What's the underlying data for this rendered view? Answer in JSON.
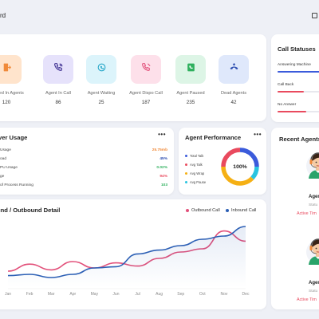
{
  "header": {
    "title": "rd"
  },
  "stats": [
    {
      "label": "Logged In Agents",
      "value": "120",
      "icon": "door-exit-icon",
      "bg": "#ffe4cc",
      "fg": "#f08a3a"
    },
    {
      "label": "Agent In Call",
      "value": "86",
      "icon": "phone-call-icon",
      "bg": "#e6e2fb",
      "fg": "#3b2c8f"
    },
    {
      "label": "Agent Waiting",
      "value": "25",
      "icon": "phone-waiting-icon",
      "bg": "#dcf4fb",
      "fg": "#29a8c9"
    },
    {
      "label": "Agent Dispo Call",
      "value": "187",
      "icon": "phone-disposition-icon",
      "bg": "#fde0ea",
      "fg": "#e2507a"
    },
    {
      "label": "Agent Paused",
      "value": "235",
      "icon": "phone-paused-icon",
      "bg": "#ddf5e6",
      "fg": "#2fb05e"
    },
    {
      "label": "Dead Agents",
      "value": "42",
      "icon": "phone-hangup-icon",
      "bg": "#dfe8fb",
      "fg": "#2c4db0"
    }
  ],
  "call_statuses": {
    "title": "Call Statuses",
    "items": [
      {
        "label": "Answering Machine",
        "level": 0.9,
        "color": "#3b5bdb"
      },
      {
        "label": "Call Back",
        "level": 0.55,
        "color": "#e94a5e"
      },
      {
        "label": "No Answer",
        "level": 0.6,
        "color": "#e94a5e"
      }
    ]
  },
  "usage": {
    "title": "ver Usage",
    "rows": [
      {
        "label": "Usage",
        "value": "25.75mb",
        "color": "#f08a3a"
      },
      {
        "label": "oad",
        "value": "45%",
        "color": "#2c4db0"
      },
      {
        "label": "PU Usage",
        "value": "0.02%",
        "color": "#2fb05e"
      },
      {
        "label": "ge",
        "value": "94%",
        "color": "#e94a5e"
      },
      {
        "label": "of Process Running",
        "value": "103",
        "color": "#2fb05e"
      }
    ]
  },
  "performance": {
    "title": "Agent Performance",
    "center": "100%",
    "legend": [
      {
        "label": "Total Talk",
        "color": "#3b5bdb"
      },
      {
        "label": "Avg Talk",
        "color": "#e94a5e"
      },
      {
        "label": "Avg Wrap",
        "color": "#f5b014"
      },
      {
        "label": "Avg Pause",
        "color": "#29c4e0"
      }
    ],
    "segments": [
      {
        "value": 25,
        "color": "#3b5bdb"
      },
      {
        "value": 12,
        "color": "#29c4e0"
      },
      {
        "value": 38,
        "color": "#f5b014"
      },
      {
        "value": 25,
        "color": "#e94a5e"
      }
    ]
  },
  "recent_agents": {
    "title": "Recent Agents",
    "items": [
      {
        "name": "Agen",
        "status": "Statu",
        "time": "Active Tim"
      },
      {
        "name": "Agen",
        "status": "Statu",
        "time": "Active Tim"
      }
    ]
  },
  "chart_data": {
    "type": "line",
    "title": "und / Outbound Detail",
    "categories": [
      "Jan",
      "Feb",
      "Mar",
      "Apr",
      "May",
      "Jun",
      "Jul",
      "Aug",
      "Sep",
      "Oct",
      "Nov",
      "Dec"
    ],
    "ylim": [
      0,
      100
    ],
    "series": [
      {
        "name": "Outbound Call",
        "color": "#e2507a",
        "values": [
          25,
          36,
          27,
          40,
          30,
          38,
          33,
          45,
          55,
          60,
          88,
          72
        ]
      },
      {
        "name": "Inbound Call",
        "color": "#2c5fb5",
        "values": [
          18,
          20,
          15,
          20,
          30,
          32,
          52,
          58,
          65,
          75,
          80,
          95
        ]
      }
    ]
  }
}
